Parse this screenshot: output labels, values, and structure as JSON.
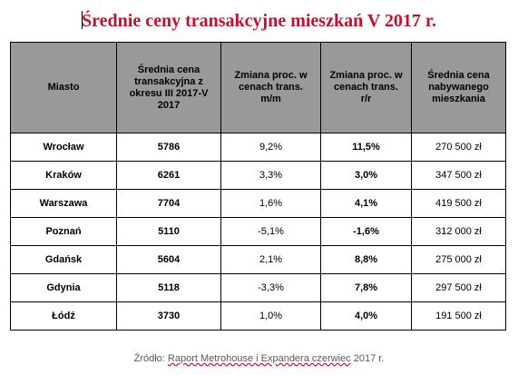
{
  "title": "Średnie ceny transakcyjne mieszkań V 2017 r.",
  "table": {
    "headers": {
      "city": "Miasto",
      "avg_price": "Średnia cena transakcyjna z okresu III 2017-V 2017",
      "change_mm": "Zmiana proc. w cenach trans. m/m",
      "change_yy": "Zmiana proc. w cenach trans. r/r",
      "avg_flat_price": "Średnia cena nabywanego mieszkania"
    },
    "rows": [
      {
        "city": "Wrocław",
        "avg_price": "5786",
        "change_mm": "9,2%",
        "change_yy": "11,5%",
        "avg_flat_price": "270 500 zł"
      },
      {
        "city": "Kraków",
        "avg_price": "6261",
        "change_mm": "3,3%",
        "change_yy": "3,0%",
        "avg_flat_price": "347 500 zł"
      },
      {
        "city": "Warszawa",
        "avg_price": "7704",
        "change_mm": "1,6%",
        "change_yy": "4,1%",
        "avg_flat_price": "419 500 zł"
      },
      {
        "city": "Poznań",
        "avg_price": "5110",
        "change_mm": "-5,1%",
        "change_yy": "-1,6%",
        "avg_flat_price": "312 000 zł"
      },
      {
        "city": "Gdańsk",
        "avg_price": "5604",
        "change_mm": "2,1%",
        "change_yy": "8,8%",
        "avg_flat_price": "275 000 zł"
      },
      {
        "city": "Gdynia",
        "avg_price": "5118",
        "change_mm": "-3,3%",
        "change_yy": "7,8%",
        "avg_flat_price": "297 500 zł"
      },
      {
        "city": "Łódź",
        "avg_price": "3730",
        "change_mm": "1,0%",
        "change_yy": "4,0%",
        "avg_flat_price": "191 500 zł"
      }
    ]
  },
  "source": {
    "prefix": "Źródło: ",
    "link_text": "Raport Metrohouse i Expandera czerwiec",
    "suffix": " 2017 r."
  },
  "colors": {
    "title": "#c8102e",
    "header_bg": "#999999",
    "border": "#000000"
  }
}
